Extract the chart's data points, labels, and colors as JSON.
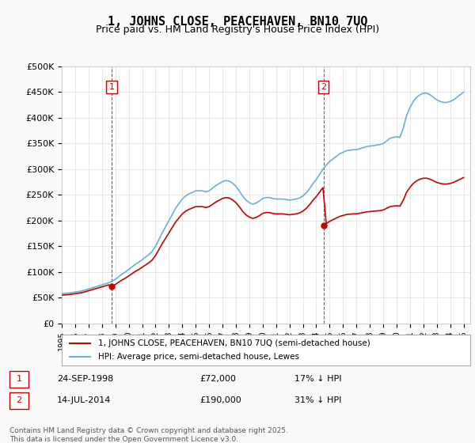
{
  "title": "1, JOHNS CLOSE, PEACEHAVEN, BN10 7UQ",
  "subtitle": "Price paid vs. HM Land Registry's House Price Index (HPI)",
  "ylabel": "",
  "ylim": [
    0,
    500000
  ],
  "yticks": [
    0,
    50000,
    100000,
    150000,
    200000,
    250000,
    300000,
    350000,
    400000,
    450000,
    500000
  ],
  "ytick_labels": [
    "£0",
    "£50K",
    "£100K",
    "£150K",
    "£200K",
    "£250K",
    "£300K",
    "£350K",
    "£400K",
    "£450K",
    "£500K"
  ],
  "hpi_color": "#6ab0d4",
  "price_color": "#cc0000",
  "vline_color": "#cc0000",
  "transaction1": {
    "date": "24-SEP-1998",
    "price": 72000,
    "note": "17% ↓ HPI",
    "label": "1"
  },
  "transaction2": {
    "date": "14-JUL-2014",
    "price": 190000,
    "note": "31% ↓ HPI",
    "label": "2"
  },
  "legend_label1": "1, JOHNS CLOSE, PEACEHAVEN, BN10 7UQ (semi-detached house)",
  "legend_label2": "HPI: Average price, semi-detached house, Lewes",
  "footer": "Contains HM Land Registry data © Crown copyright and database right 2025.\nThis data is licensed under the Open Government Licence v3.0.",
  "background_color": "#f9f9f9",
  "plot_bg_color": "#ffffff",
  "hpi_years": [
    1995,
    1995.25,
    1995.5,
    1995.75,
    1996,
    1996.25,
    1996.5,
    1996.75,
    1997,
    1997.25,
    1997.5,
    1997.75,
    1998,
    1998.25,
    1998.5,
    1998.75,
    1999,
    1999.25,
    1999.5,
    1999.75,
    2000,
    2000.25,
    2000.5,
    2000.75,
    2001,
    2001.25,
    2001.5,
    2001.75,
    2002,
    2002.25,
    2002.5,
    2002.75,
    2003,
    2003.25,
    2003.5,
    2003.75,
    2004,
    2004.25,
    2004.5,
    2004.75,
    2005,
    2005.25,
    2005.5,
    2005.75,
    2006,
    2006.25,
    2006.5,
    2006.75,
    2007,
    2007.25,
    2007.5,
    2007.75,
    2008,
    2008.25,
    2008.5,
    2008.75,
    2009,
    2009.25,
    2009.5,
    2009.75,
    2010,
    2010.25,
    2010.5,
    2010.75,
    2011,
    2011.25,
    2011.5,
    2011.75,
    2012,
    2012.25,
    2012.5,
    2012.75,
    2013,
    2013.25,
    2013.5,
    2013.75,
    2014,
    2014.25,
    2014.5,
    2014.75,
    2015,
    2015.25,
    2015.5,
    2015.75,
    2016,
    2016.25,
    2016.5,
    2016.75,
    2017,
    2017.25,
    2017.5,
    2017.75,
    2018,
    2018.25,
    2018.5,
    2018.75,
    2019,
    2019.25,
    2019.5,
    2019.75,
    2020,
    2020.25,
    2020.5,
    2020.75,
    2021,
    2021.25,
    2021.5,
    2021.75,
    2022,
    2022.25,
    2022.5,
    2022.75,
    2023,
    2023.25,
    2023.5,
    2023.75,
    2024,
    2024.25,
    2024.5,
    2024.75,
    2025
  ],
  "hpi_values": [
    58000,
    58500,
    59000,
    60000,
    61000,
    62000,
    63000,
    65000,
    67000,
    69000,
    71000,
    73000,
    75000,
    77000,
    79000,
    82000,
    86000,
    91000,
    96000,
    100000,
    105000,
    110000,
    115000,
    119000,
    124000,
    129000,
    134000,
    140000,
    150000,
    163000,
    176000,
    188000,
    200000,
    212000,
    224000,
    233000,
    242000,
    248000,
    252000,
    255000,
    258000,
    258000,
    258000,
    256000,
    258000,
    263000,
    268000,
    272000,
    276000,
    278000,
    277000,
    273000,
    267000,
    258000,
    248000,
    240000,
    235000,
    232000,
    234000,
    238000,
    243000,
    245000,
    245000,
    243000,
    242000,
    242000,
    242000,
    241000,
    240000,
    241000,
    242000,
    244000,
    248000,
    254000,
    262000,
    272000,
    280000,
    290000,
    300000,
    308000,
    315000,
    320000,
    325000,
    330000,
    333000,
    336000,
    337000,
    338000,
    338000,
    340000,
    342000,
    344000,
    345000,
    346000,
    347000,
    348000,
    350000,
    355000,
    360000,
    362000,
    363000,
    362000,
    380000,
    405000,
    420000,
    432000,
    440000,
    445000,
    448000,
    448000,
    445000,
    440000,
    435000,
    432000,
    430000,
    430000,
    432000,
    435000,
    440000,
    445000,
    450000
  ],
  "price_years": [
    1995.5,
    1998.73,
    2014.54
  ],
  "price_values": [
    55000,
    72000,
    190000
  ],
  "vline1_x": 1998.73,
  "vline2_x": 2014.54,
  "xtick_years": [
    1995,
    1996,
    1997,
    1998,
    1999,
    2000,
    2001,
    2002,
    2003,
    2004,
    2005,
    2006,
    2007,
    2008,
    2009,
    2010,
    2011,
    2012,
    2013,
    2014,
    2015,
    2016,
    2017,
    2018,
    2019,
    2020,
    2021,
    2022,
    2023,
    2024,
    2025
  ],
  "marker1_x": 1998.73,
  "marker1_y": 72000,
  "marker2_x": 2014.54,
  "marker2_y": 190000
}
